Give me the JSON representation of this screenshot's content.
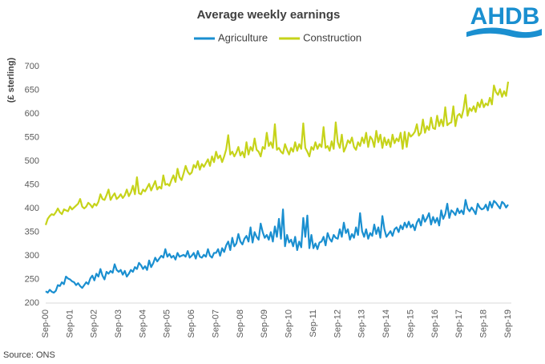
{
  "logo": "AHDB",
  "source": "Source: ONS",
  "chart_data": {
    "type": "line",
    "title": "Average weekly earnings",
    "y_label": "(£ sterling)",
    "categories": [
      "Sep-00",
      null,
      null,
      null,
      null,
      null,
      null,
      null,
      null,
      null,
      null,
      null,
      "Sep-01",
      null,
      null,
      null,
      null,
      null,
      null,
      null,
      null,
      null,
      null,
      null,
      "Sep-02",
      null,
      null,
      null,
      null,
      null,
      null,
      null,
      null,
      null,
      null,
      null,
      "Sep-03",
      null,
      null,
      null,
      null,
      null,
      null,
      null,
      null,
      null,
      null,
      null,
      "Sep-04",
      null,
      null,
      null,
      null,
      null,
      null,
      null,
      null,
      null,
      null,
      null,
      "Sep-05",
      null,
      null,
      null,
      null,
      null,
      null,
      null,
      null,
      null,
      null,
      null,
      "Sep-06",
      null,
      null,
      null,
      null,
      null,
      null,
      null,
      null,
      null,
      null,
      null,
      "Sep-07",
      null,
      null,
      null,
      null,
      null,
      null,
      null,
      null,
      null,
      null,
      null,
      "Sep-08",
      null,
      null,
      null,
      null,
      null,
      null,
      null,
      null,
      null,
      null,
      null,
      "Sep-09",
      null,
      null,
      null,
      null,
      null,
      null,
      null,
      null,
      null,
      null,
      null,
      "Sep-10",
      null,
      null,
      null,
      null,
      null,
      null,
      null,
      null,
      null,
      null,
      null,
      "Sep-11",
      null,
      null,
      null,
      null,
      null,
      null,
      null,
      null,
      null,
      null,
      null,
      "Sep-12",
      null,
      null,
      null,
      null,
      null,
      null,
      null,
      null,
      null,
      null,
      null,
      "Sep-13",
      null,
      null,
      null,
      null,
      null,
      null,
      null,
      null,
      null,
      null,
      null,
      "Sep-14",
      null,
      null,
      null,
      null,
      null,
      null,
      null,
      null,
      null,
      null,
      null,
      "Sep-15",
      null,
      null,
      null,
      null,
      null,
      null,
      null,
      null,
      null,
      null,
      null,
      "Sep-16",
      null,
      null,
      null,
      null,
      null,
      null,
      null,
      null,
      null,
      null,
      null,
      "Sep-17",
      null,
      null,
      null,
      null,
      null,
      null,
      null,
      null,
      null,
      null,
      null,
      "Sep-18",
      null,
      null,
      null,
      null,
      null,
      null,
      null,
      null,
      null,
      null,
      null,
      "Sep-19"
    ],
    "series": [
      {
        "name": "Agriculture",
        "color": "#1a8fd0",
        "values": [
          225,
          222,
          228,
          224,
          222,
          226,
          238,
          236,
          244,
          240,
          256,
          252,
          250,
          246,
          244,
          238,
          242,
          236,
          232,
          238,
          244,
          240,
          252,
          258,
          248,
          262,
          256,
          272,
          258,
          250,
          266,
          262,
          268,
          264,
          282,
          270,
          266,
          270,
          260,
          268,
          256,
          262,
          270,
          266,
          276,
          272,
          285,
          280,
          272,
          278,
          270,
          290,
          276,
          284,
          296,
          288,
          294,
          300,
          296,
          314,
          298,
          304,
          296,
          300,
          292,
          306,
          298,
          300,
          302,
          298,
          310,
          296,
          300,
          306,
          294,
          310,
          298,
          296,
          302,
          298,
          314,
          300,
          296,
          306,
          306,
          314,
          300,
          316,
          308,
          322,
          330,
          312,
          338,
          320,
          326,
          346,
          330,
          324,
          336,
          342,
          330,
          360,
          328,
          350,
          340,
          334,
          368,
          350,
          338,
          344,
          334,
          350,
          330,
          362,
          340,
          378,
          336,
          398,
          320,
          344,
          328,
          334,
          320,
          340,
          312,
          330,
          318,
          380,
          340,
          385,
          316,
          344,
          316,
          326,
          314,
          328,
          330,
          340,
          322,
          348,
          336,
          330,
          344,
          338,
          336,
          356,
          340,
          370,
          348,
          356,
          334,
          346,
          338,
          360,
          344,
          390,
          352,
          340,
          356,
          336,
          348,
          342,
          366,
          346,
          360,
          338,
          384,
          356,
          340,
          346,
          352,
          342,
          356,
          360,
          350,
          364,
          356,
          370,
          360,
          372,
          360,
          366,
          354,
          370,
          378,
          364,
          386,
          372,
          380,
          390,
          366,
          382,
          370,
          380,
          364,
          396,
          378,
          388,
          410,
          380,
          396,
          392,
          386,
          400,
          390,
          396,
          388,
          418,
          400,
          394,
          402,
          396,
          388,
          410,
          402,
          398,
          400,
          408,
          396,
          414,
          402,
          416,
          412,
          406,
          400,
          414,
          410,
          402,
          408
        ]
      },
      {
        "name": "Construction",
        "color": "#c6d31a",
        "values": [
          365,
          378,
          384,
          388,
          386,
          392,
          400,
          392,
          388,
          398,
          396,
          394,
          404,
          398,
          402,
          406,
          410,
          420,
          404,
          400,
          404,
          412,
          408,
          402,
          410,
          406,
          414,
          430,
          420,
          418,
          428,
          440,
          418,
          426,
          432,
          420,
          424,
          430,
          422,
          428,
          440,
          426,
          434,
          448,
          430,
          466,
          432,
          430,
          440,
          436,
          444,
          452,
          438,
          448,
          458,
          440,
          446,
          442,
          470,
          450,
          452,
          448,
          460,
          470,
          456,
          484,
          466,
          460,
          474,
          490,
          478,
          472,
          476,
          492,
          486,
          500,
          482,
          494,
          488,
          496,
          504,
          490,
          510,
          498,
          520,
          506,
          512,
          498,
          510,
          525,
          555,
          514,
          520,
          510,
          518,
          530,
          512,
          520,
          508,
          540,
          514,
          530,
          522,
          548,
          524,
          520,
          510,
          530,
          526,
          560,
          532,
          540,
          528,
          578,
          524,
          528,
          520,
          516,
          536,
          524,
          514,
          528,
          520,
          540,
          522,
          536,
          526,
          580,
          528,
          520,
          510,
          530,
          524,
          540,
          526,
          536,
          530,
          572,
          528,
          532,
          522,
          542,
          526,
          582,
          540,
          528,
          556,
          520,
          530,
          544,
          538,
          550,
          530,
          524,
          540,
          532,
          550,
          538,
          560,
          530,
          552,
          546,
          530,
          564,
          540,
          556,
          528,
          550,
          534,
          546,
          530,
          556,
          538,
          548,
          542,
          560,
          526,
          562,
          530,
          560,
          552,
          556,
          562,
          578,
          554,
          560,
          588,
          560,
          574,
          566,
          592,
          570,
          568,
          596,
          574,
          588,
          574,
          614,
          576,
          580,
          582,
          616,
          574,
          596,
          600,
          592,
          610,
          640,
          596,
          612,
          606,
          616,
          604,
          624,
          614,
          630,
          614,
          622,
          618,
          634,
          620,
          660,
          646,
          640,
          652,
          636,
          648,
          638,
          668
        ]
      }
    ],
    "ylim": [
      200,
      700
    ],
    "yticks": [
      200,
      250,
      300,
      350,
      400,
      450,
      500,
      550,
      600,
      650,
      700
    ],
    "grid": false,
    "legend": "top"
  }
}
